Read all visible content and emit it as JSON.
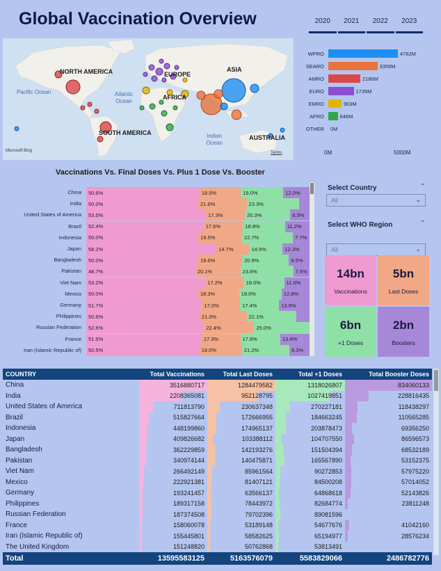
{
  "title": "Global Vaccination Overview",
  "years": [
    "2020",
    "2021",
    "2022",
    "2023"
  ],
  "map": {
    "continents": [
      "NORTH AMERICA",
      "EUROPE",
      "ASIA",
      "AFRICA",
      "SOUTH AMERICA",
      "AUSTRALIA"
    ],
    "oceans": {
      "pacific": "Pacific Ocean",
      "atlantic": "Atlantic Ocean",
      "indian": "Indian Ocean"
    },
    "attribution": "Microsoft Bing",
    "terms": "Terms",
    "region_colors": {
      "WPRO": "#1e8ff0",
      "SEARO": "#e8743b",
      "AMRO": "#d94848",
      "EURO": "#8a4fd2",
      "EMRO": "#e2b400",
      "AFRO": "#2ea84a"
    }
  },
  "who_chart": {
    "regions": [
      {
        "name": "WPRO",
        "label": "4762M",
        "value": 4762,
        "color": "#1e8ff0"
      },
      {
        "name": "SEARO",
        "label": "3359M",
        "value": 3359,
        "color": "#e8743b"
      },
      {
        "name": "AMRO",
        "label": "2186M",
        "value": 2186,
        "color": "#d94848"
      },
      {
        "name": "EURO",
        "label": "1739M",
        "value": 1739,
        "color": "#8a4fd2"
      },
      {
        "name": "EMRO",
        "label": "903M",
        "value": 903,
        "color": "#e2b400"
      },
      {
        "name": "AFRO",
        "label": "646M",
        "value": 646,
        "color": "#2ea84a"
      },
      {
        "name": "OTHER",
        "label": "0M",
        "value": 0,
        "color": "#888888"
      }
    ],
    "axis_min": "0M",
    "axis_max": "5000M",
    "max": 5000
  },
  "stacked": {
    "title": "Vaccinations Vs. Final Doses Vs. Plus 1 Dose Vs. Booster",
    "colors": [
      "#f09ad2",
      "#f1a886",
      "#8fe0a6",
      "#a787d8"
    ],
    "rows": [
      {
        "country": "China",
        "values": [
          50.6,
          18.5,
          19.0,
          12.0
        ],
        "labels": [
          "50.6%",
          "18.5%",
          "19.0%",
          "12.0%"
        ]
      },
      {
        "country": "India",
        "values": [
          50.0,
          21.6,
          23.3,
          5.1
        ],
        "labels": [
          "50.0%",
          "21.6%",
          "23.3%",
          ""
        ]
      },
      {
        "country": "United States of America",
        "values": [
          53.5,
          17.3,
          20.3,
          8.9
        ],
        "labels": [
          "53.5%",
          "17.3%",
          "20.3%",
          "8.9%"
        ]
      },
      {
        "country": "Brazil",
        "values": [
          52.4,
          17.6,
          18.8,
          11.2
        ],
        "labels": [
          "52.4%",
          "17.6%",
          "18.8%",
          "11.2%"
        ]
      },
      {
        "country": "Indonesia",
        "values": [
          50.0,
          19.5,
          22.7,
          7.7
        ],
        "labels": [
          "50.0%",
          "19.5%",
          "22.7%",
          "7.7%"
        ]
      },
      {
        "country": "Japan",
        "values": [
          58.2,
          14.7,
          14.9,
          12.3
        ],
        "labels": [
          "58.2%",
          "14.7%",
          "14.9%",
          "12.3%"
        ]
      },
      {
        "country": "Bangladesh",
        "values": [
          50.0,
          19.6,
          20.9,
          9.5
        ],
        "labels": [
          "50.0%",
          "19.6%",
          "20.9%",
          "9.5%"
        ]
      },
      {
        "country": "Pakistan",
        "values": [
          48.7,
          20.1,
          23.6,
          7.6
        ],
        "labels": [
          "48.7%",
          "20.1%",
          "23.6%",
          "7.6%"
        ]
      },
      {
        "country": "Viet Nam",
        "values": [
          53.2,
          17.2,
          18.0,
          11.6
        ],
        "labels": [
          "53.2%",
          "17.2%",
          "18.0%",
          "11.6%"
        ]
      },
      {
        "country": "Mexico",
        "values": [
          50.0,
          18.3,
          19.0,
          12.8
        ],
        "labels": [
          "50.0%",
          "18.3%",
          "19.0%",
          "12.8%"
        ]
      },
      {
        "country": "Germany",
        "values": [
          51.7,
          17.0,
          17.4,
          13.9
        ],
        "labels": [
          "51.7%",
          "17.0%",
          "17.4%",
          "13.9%"
        ]
      },
      {
        "country": "Philippines",
        "values": [
          50.6,
          21.0,
          22.1,
          6.3
        ],
        "labels": [
          "50.6%",
          "21.0%",
          "22.1%",
          ""
        ]
      },
      {
        "country": "Russian Federation",
        "values": [
          52.6,
          22.4,
          25.0,
          0
        ],
        "labels": [
          "52.6%",
          "22.4%",
          "25.0%",
          ""
        ]
      },
      {
        "country": "France",
        "values": [
          51.5,
          17.3,
          17.8,
          13.4
        ],
        "labels": [
          "51.5%",
          "17.3%",
          "17.8%",
          "13.4%"
        ]
      },
      {
        "country": "Iran (Islamic Republic of)",
        "values": [
          50.5,
          19.0,
          21.2,
          9.3
        ],
        "labels": [
          "50.5%",
          "19.0%",
          "21.2%",
          "9.3%"
        ]
      }
    ]
  },
  "slicers": {
    "country": {
      "title": "Select Country",
      "value": "All"
    },
    "region": {
      "title": "Select WHO Region",
      "value": "All"
    }
  },
  "kpis": [
    {
      "value": "14bn",
      "label": "Vaccinations",
      "color": "#f09ad2"
    },
    {
      "value": "5bn",
      "label": "Last Doses",
      "color": "#f1a886"
    },
    {
      "value": "6bn",
      "label": "+1 Doses",
      "color": "#8fe0a6"
    },
    {
      "value": "2bn",
      "label": "Boosters",
      "color": "#a787d8"
    }
  ],
  "table": {
    "headers": [
      "COUNTRY",
      "Total Vaccinations",
      "Total Last Doses",
      "Total +1 Doses",
      "Total Booster Doses"
    ],
    "bar_colors": [
      "",
      "#f5b3dd",
      "#f6c1a4",
      "#a8e9bb",
      "#b99ae0"
    ],
    "max": [
      0,
      3516880717,
      1284479582,
      1318026807,
      834060133
    ],
    "rows": [
      [
        "China",
        "3516880717",
        "1284479582",
        "1318026807",
        "834060133"
      ],
      [
        "India",
        "2208365081",
        "952128795",
        "1027419851",
        "228816435"
      ],
      [
        "United States of America",
        "711813790",
        "230637348",
        "270227181",
        "118438297"
      ],
      [
        "Brazil",
        "515827664",
        "172666955",
        "184663245",
        "110565285"
      ],
      [
        "Indonesia",
        "448199860",
        "174965137",
        "203878473",
        "69356250"
      ],
      [
        "Japan",
        "409826682",
        "103388112",
        "104707550",
        "86596573"
      ],
      [
        "Bangladesh",
        "362229859",
        "142193276",
        "151504394",
        "68532189"
      ],
      [
        "Pakistan",
        "340974144",
        "140475871",
        "165567890",
        "53152375"
      ],
      [
        "Viet Nam",
        "266492149",
        "85961564",
        "90272853",
        "57975220"
      ],
      [
        "Mexico",
        "222921381",
        "81407121",
        "84500208",
        "57014052"
      ],
      [
        "Germany",
        "193241457",
        "63566137",
        "64868618",
        "52143826"
      ],
      [
        "Philippines",
        "189317158",
        "78443972",
        "82684774",
        "23811248"
      ],
      [
        "Russian Federation",
        "187374508",
        "79702396",
        "89081596",
        ""
      ],
      [
        "France",
        "158060078",
        "53189148",
        "54677676",
        "41042160"
      ],
      [
        "Iran (Islamic Republic of)",
        "155445801",
        "58582625",
        "65194977",
        "28576234"
      ],
      [
        "The United Kingdom",
        "151248820",
        "50762868",
        "53813491",
        ""
      ]
    ],
    "total": [
      "Total",
      "13595583125",
      "5163576079",
      "5583829066",
      "2486782776"
    ]
  }
}
